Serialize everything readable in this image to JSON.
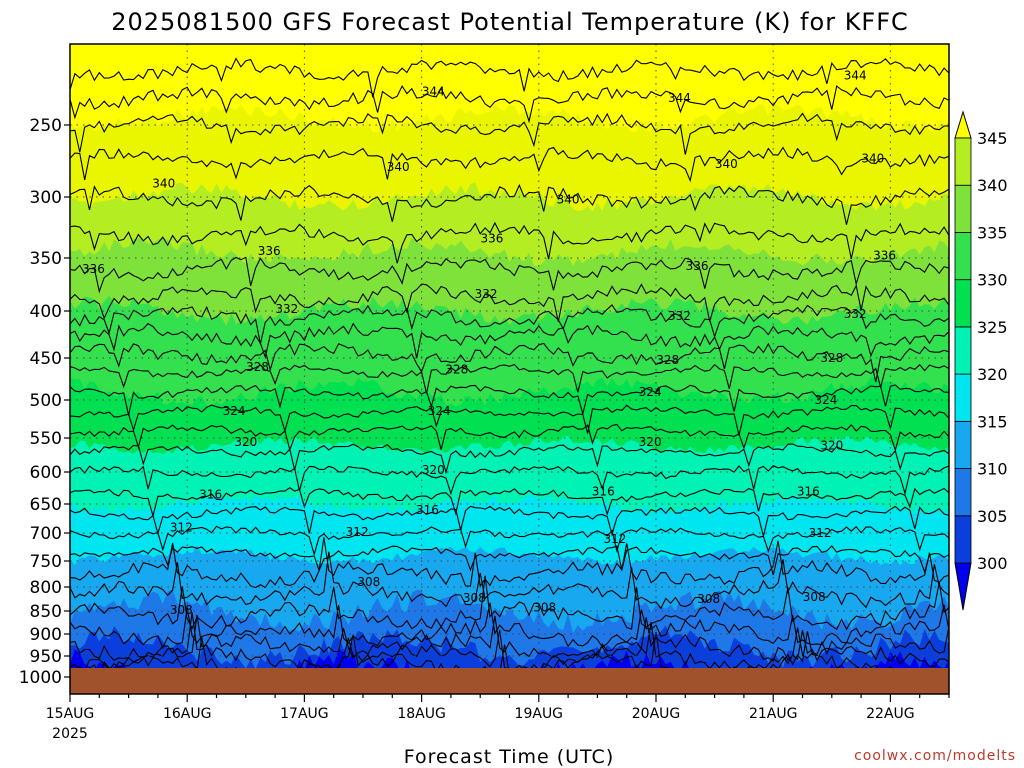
{
  "chart_data": {
    "type": "heatmap",
    "title": "2025081500 GFS Forecast Potential Temperature (K) for KFFC",
    "xlabel": "Forecast Time (UTC)",
    "ylabel": "",
    "x_start_year": "2025",
    "x_ticks": [
      "15AUG",
      "16AUG",
      "17AUG",
      "18AUG",
      "19AUG",
      "20AUG",
      "21AUG",
      "22AUG"
    ],
    "x_range_days": [
      0,
      7.5
    ],
    "y_ticks": [
      250,
      300,
      350,
      400,
      450,
      500,
      550,
      600,
      650,
      700,
      750,
      800,
      850,
      900,
      950,
      1000
    ],
    "y_range_hpa": [
      200,
      1000
    ],
    "y_scale": "log",
    "colorbar": {
      "levels": [
        300,
        305,
        310,
        315,
        320,
        325,
        330,
        335,
        340,
        345
      ],
      "colors": [
        "#0000ee",
        "#0a3fdd",
        "#1e78e8",
        "#18a8f0",
        "#00e6f0",
        "#00f2b4",
        "#00e050",
        "#33e04d",
        "#7fe23a",
        "#b4ee22",
        "#eaf600",
        "#ffff00"
      ],
      "extend": "both"
    },
    "contour_labels": [
      {
        "value": "344",
        "day": 3.1,
        "p": 228
      },
      {
        "value": "344",
        "day": 5.2,
        "p": 232
      },
      {
        "value": "344",
        "day": 6.7,
        "p": 218
      },
      {
        "value": "340",
        "day": 0.8,
        "p": 290
      },
      {
        "value": "340",
        "day": 2.8,
        "p": 278
      },
      {
        "value": "340",
        "day": 4.25,
        "p": 302
      },
      {
        "value": "340",
        "day": 5.6,
        "p": 276
      },
      {
        "value": "340",
        "day": 6.85,
        "p": 272
      },
      {
        "value": "336",
        "day": 0.2,
        "p": 360
      },
      {
        "value": "336",
        "day": 1.7,
        "p": 344
      },
      {
        "value": "336",
        "day": 3.6,
        "p": 333
      },
      {
        "value": "336",
        "day": 5.35,
        "p": 357
      },
      {
        "value": "336",
        "day": 6.95,
        "p": 348
      },
      {
        "value": "332",
        "day": 1.85,
        "p": 398
      },
      {
        "value": "332",
        "day": 3.55,
        "p": 383
      },
      {
        "value": "332",
        "day": 5.2,
        "p": 405
      },
      {
        "value": "332",
        "day": 6.7,
        "p": 403
      },
      {
        "value": "328",
        "day": 1.6,
        "p": 460
      },
      {
        "value": "328",
        "day": 3.3,
        "p": 463
      },
      {
        "value": "328",
        "day": 5.1,
        "p": 452
      },
      {
        "value": "328",
        "day": 6.5,
        "p": 450
      },
      {
        "value": "324",
        "day": 1.4,
        "p": 514
      },
      {
        "value": "324",
        "day": 3.15,
        "p": 514
      },
      {
        "value": "324",
        "day": 4.95,
        "p": 490
      },
      {
        "value": "324",
        "day": 6.45,
        "p": 500
      },
      {
        "value": "320",
        "day": 1.5,
        "p": 556
      },
      {
        "value": "320",
        "day": 3.1,
        "p": 597
      },
      {
        "value": "320",
        "day": 4.95,
        "p": 556
      },
      {
        "value": "320",
        "day": 6.5,
        "p": 561
      },
      {
        "value": "316",
        "day": 1.2,
        "p": 635
      },
      {
        "value": "316",
        "day": 3.05,
        "p": 660
      },
      {
        "value": "316",
        "day": 4.55,
        "p": 630
      },
      {
        "value": "316",
        "day": 6.3,
        "p": 630
      },
      {
        "value": "312",
        "day": 0.95,
        "p": 690
      },
      {
        "value": "312",
        "day": 2.45,
        "p": 698
      },
      {
        "value": "312",
        "day": 4.65,
        "p": 710
      },
      {
        "value": "312",
        "day": 6.4,
        "p": 700
      },
      {
        "value": "308",
        "day": 0.95,
        "p": 848
      },
      {
        "value": "308",
        "day": 2.55,
        "p": 790
      },
      {
        "value": "308",
        "day": 3.45,
        "p": 823
      },
      {
        "value": "308",
        "day": 4.05,
        "p": 843
      },
      {
        "value": "308",
        "day": 5.45,
        "p": 825
      },
      {
        "value": "308",
        "day": 6.35,
        "p": 820
      }
    ]
  },
  "credit": "coolwx.com/modelts"
}
